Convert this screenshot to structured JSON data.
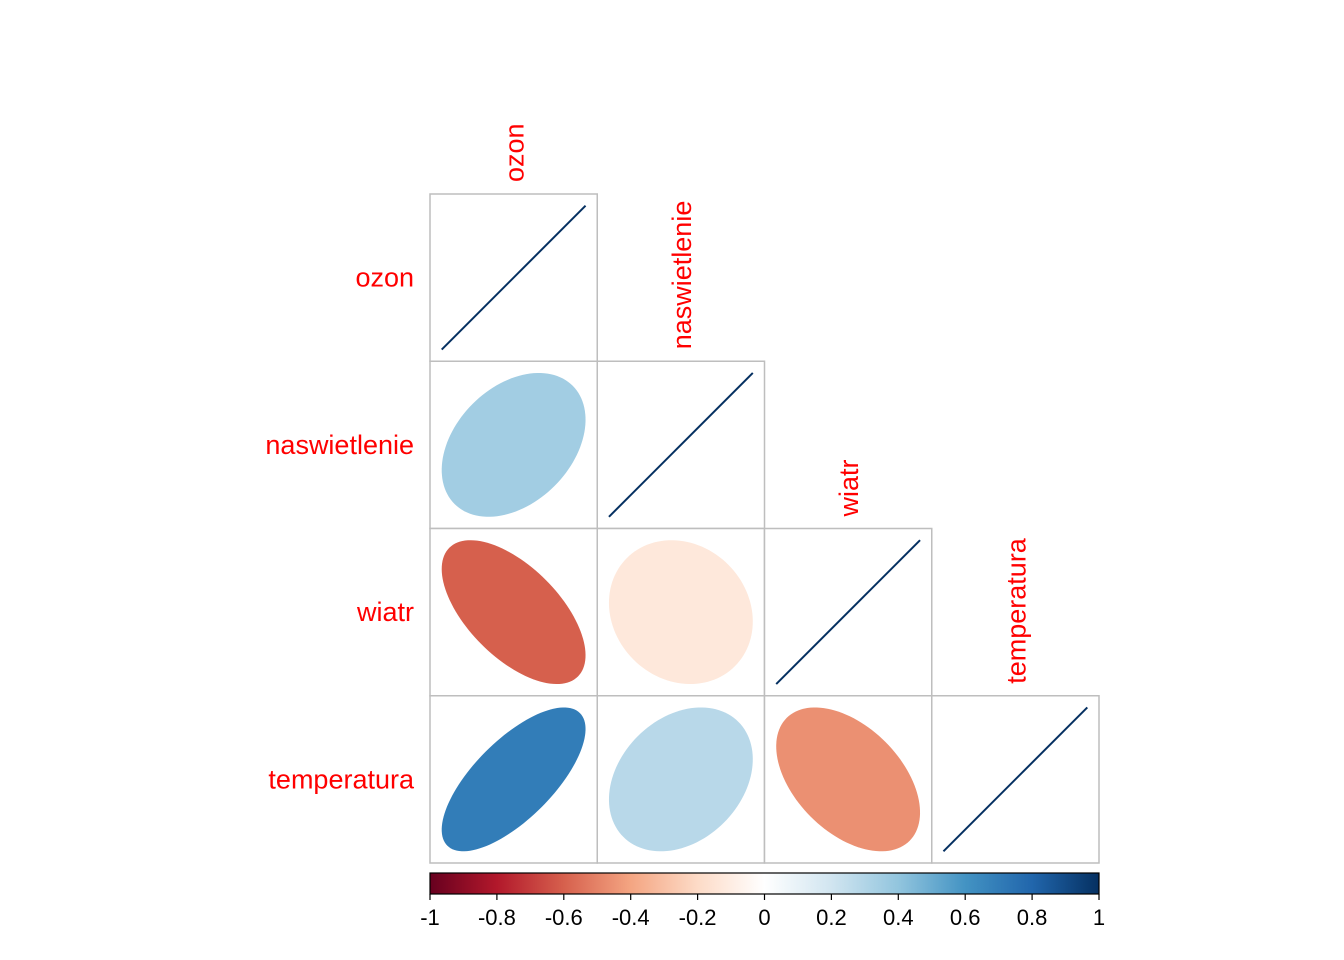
{
  "chart_data": {
    "type": "heatmap",
    "style": "ellipse correlation plot, lower triangle",
    "variables": [
      "ozon",
      "naswietlenie",
      "wiatr",
      "temperatura"
    ],
    "correlations": [
      [
        1.0,
        null,
        null,
        null
      ],
      [
        0.35,
        1.0,
        null,
        null
      ],
      [
        -0.6,
        -0.13,
        1.0,
        null
      ],
      [
        0.7,
        0.28,
        -0.46,
        1.0
      ]
    ],
    "colorbar": {
      "min": -1,
      "max": 1,
      "ticks": [
        "-1",
        "-0.8",
        "-0.6",
        "-0.4",
        "-0.2",
        "0",
        "0.2",
        "0.4",
        "0.6",
        "0.8",
        "1"
      ]
    },
    "colors": {
      "label": "#ff0000",
      "grid": "#bebebe",
      "scale": [
        "#67001f",
        "#b2182b",
        "#d6604d",
        "#f4a582",
        "#fddbc7",
        "#ffffff",
        "#d1e5f0",
        "#92c5de",
        "#4393c3",
        "#2166ac",
        "#053061"
      ]
    }
  }
}
